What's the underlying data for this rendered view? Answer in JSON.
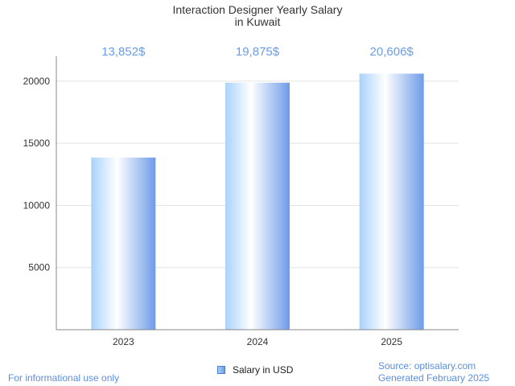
{
  "chart_data": {
    "type": "bar",
    "title": [
      "Interaction Designer Yearly Salary",
      "in Kuwait"
    ],
    "categories": [
      "2023",
      "2024",
      "2025"
    ],
    "series": [
      {
        "name": "Salary in USD",
        "values": [
          13852,
          19875,
          20606
        ],
        "labels": [
          "13,852$",
          "19,875$",
          "20,606$"
        ]
      }
    ],
    "yticks": [
      5000,
      10000,
      15000,
      20000
    ],
    "ylim": [
      0,
      22000
    ],
    "grid": true,
    "legend_position": "bottom-center",
    "xlabel": "",
    "ylabel": ""
  },
  "colors": {
    "bar_light": "#ffffff",
    "bar_mid": "#a9d2fb",
    "bar_dark": "#6e9be8",
    "label_color": "#6b9be6",
    "footer_color": "#5b8ede",
    "grid_color": "#e4e4e4",
    "axis_color": "#888888"
  },
  "footer": {
    "note": "For informational use only",
    "source": "Source: optisalary.com",
    "generated": "Generated February 2025"
  }
}
